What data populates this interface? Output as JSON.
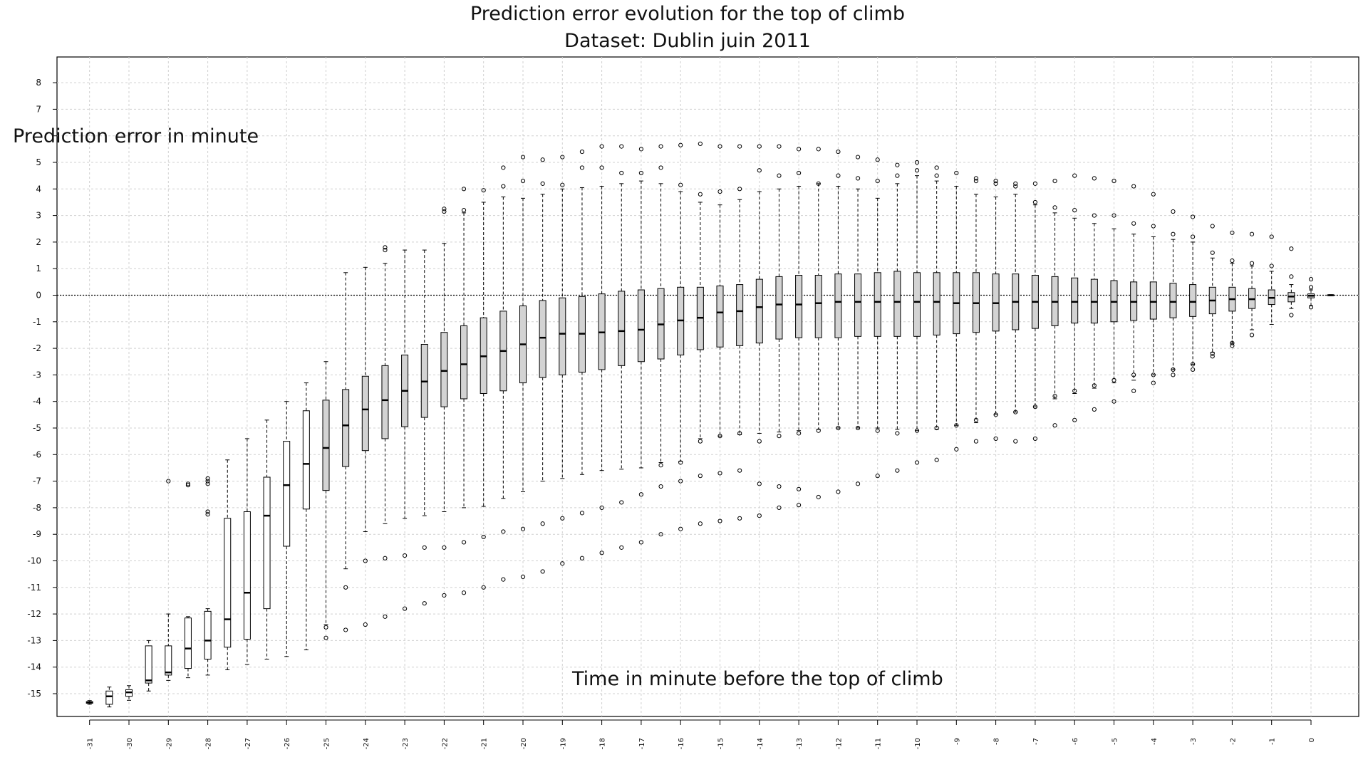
{
  "chart_data": {
    "type": "box",
    "title": "Prediction error evolution for the top of climb",
    "subtitle": "Dataset: Dublin juin 2011",
    "ylabel": "Prediction error in minute",
    "xlabel": "Time in minute before the top of climb",
    "ylim": [
      -15.9,
      8.9
    ],
    "yticks": [
      8,
      7,
      6,
      5,
      4,
      3,
      2,
      1,
      0,
      -1,
      -2,
      -3,
      -4,
      -5,
      -6,
      -7,
      -8,
      -9,
      -10,
      -11,
      -12,
      -13,
      -14,
      -15
    ],
    "yticks_labeled": [
      8,
      7,
      5,
      4,
      3,
      2,
      1,
      0,
      -1,
      -2,
      -3,
      -4,
      -5,
      -6,
      -7,
      -8,
      -9,
      -10,
      -11,
      -12,
      -13,
      -14,
      -15
    ],
    "xticks": [
      -31,
      -30,
      -29,
      -28,
      -27,
      -26,
      -25,
      -24,
      -23,
      -22,
      -21,
      -20,
      -19,
      -18,
      -17,
      -16,
      -15,
      -14,
      -13,
      -12,
      -11,
      -10,
      -9,
      -8,
      -7,
      -6,
      -5,
      -4,
      -3,
      -2,
      -1,
      0
    ],
    "grid": true,
    "reference_line_y": 0,
    "boxes": [
      {
        "x": -31,
        "min": -15.4,
        "q1": -15.36,
        "median": -15.33,
        "q3": -15.3,
        "max": -15.26,
        "fill": "white",
        "upper_outliers": [],
        "lower_outliers": []
      },
      {
        "x": -30.5,
        "min": -15.5,
        "q1": -15.4,
        "median": -15.1,
        "q3": -14.9,
        "max": -14.75,
        "fill": "white",
        "upper_outliers": [],
        "lower_outliers": []
      },
      {
        "x": -30,
        "min": -15.25,
        "q1": -15.1,
        "median": -14.95,
        "q3": -14.85,
        "max": -14.7,
        "fill": "white",
        "upper_outliers": [],
        "lower_outliers": []
      },
      {
        "x": -29.5,
        "min": -14.9,
        "q1": -14.6,
        "median": -14.5,
        "q3": -13.2,
        "max": -13.0,
        "fill": "white",
        "upper_outliers": [],
        "lower_outliers": []
      },
      {
        "x": -29,
        "min": -14.5,
        "q1": -14.3,
        "median": -14.2,
        "q3": -13.2,
        "max": -12.0,
        "fill": "white",
        "upper_outliers": [
          -7.0
        ],
        "lower_outliers": []
      },
      {
        "x": -28.5,
        "min": -14.4,
        "q1": -14.05,
        "median": -13.3,
        "q3": -12.15,
        "max": -12.1,
        "fill": "white",
        "upper_outliers": [
          -7.1,
          -7.15
        ],
        "lower_outliers": []
      },
      {
        "x": -28,
        "min": -14.3,
        "q1": -13.7,
        "median": -13.0,
        "q3": -11.9,
        "max": -11.8,
        "fill": "white",
        "upper_outliers": [
          -6.9,
          -7.0,
          -7.1,
          -8.15,
          -8.25
        ],
        "lower_outliers": []
      },
      {
        "x": -27.5,
        "min": -14.1,
        "q1": -13.25,
        "median": -12.2,
        "q3": -8.4,
        "max": -6.2,
        "fill": "white",
        "upper_outliers": [],
        "lower_outliers": []
      },
      {
        "x": -27,
        "min": -13.9,
        "q1": -12.95,
        "median": -11.2,
        "q3": -8.15,
        "max": -5.4,
        "fill": "white",
        "upper_outliers": [],
        "lower_outliers": []
      },
      {
        "x": -26.5,
        "min": -13.7,
        "q1": -11.8,
        "median": -8.3,
        "q3": -6.85,
        "max": -4.7,
        "fill": "white",
        "upper_outliers": [],
        "lower_outliers": []
      },
      {
        "x": -26,
        "min": -13.6,
        "q1": -9.45,
        "median": -7.15,
        "q3": -5.5,
        "max": -4.0,
        "fill": "white",
        "upper_outliers": [],
        "lower_outliers": []
      },
      {
        "x": -25.5,
        "min": -13.35,
        "q1": -8.05,
        "median": -6.35,
        "q3": -4.35,
        "max": -3.3,
        "fill": "white",
        "upper_outliers": [],
        "lower_outliers": []
      },
      {
        "x": -25,
        "min": -12.4,
        "q1": -7.35,
        "median": -5.75,
        "q3": -3.95,
        "max": -2.5,
        "fill": "#d3d3d3",
        "upper_outliers": [],
        "lower_outliers": [
          -12.5,
          -12.9
        ]
      },
      {
        "x": -24.5,
        "min": -10.3,
        "q1": -6.45,
        "median": -4.9,
        "q3": -3.55,
        "max": 0.85,
        "fill": "#d3d3d3",
        "upper_outliers": [],
        "lower_outliers": [
          -11.0,
          -12.6
        ]
      },
      {
        "x": -24,
        "min": -8.9,
        "q1": -5.85,
        "median": -4.3,
        "q3": -3.05,
        "max": 1.05,
        "fill": "#d3d3d3",
        "upper_outliers": [],
        "lower_outliers": [
          -10.0,
          -12.4
        ]
      },
      {
        "x": -23.5,
        "min": -8.6,
        "q1": -5.4,
        "median": -3.95,
        "q3": -2.65,
        "max": 1.2,
        "fill": "#d3d3d3",
        "upper_outliers": [
          1.7,
          1.8
        ],
        "lower_outliers": [
          -9.9,
          -12.1
        ]
      },
      {
        "x": -23,
        "min": -8.4,
        "q1": -4.95,
        "median": -3.6,
        "q3": -2.25,
        "max": 1.7,
        "fill": "#d3d3d3",
        "upper_outliers": [],
        "lower_outliers": [
          -9.8,
          -11.8
        ]
      },
      {
        "x": -22.5,
        "min": -8.3,
        "q1": -4.6,
        "median": -3.25,
        "q3": -1.85,
        "max": 1.7,
        "fill": "#d3d3d3",
        "upper_outliers": [],
        "lower_outliers": [
          -9.5,
          -11.6
        ]
      },
      {
        "x": -22,
        "min": -8.15,
        "q1": -4.2,
        "median": -2.85,
        "q3": -1.4,
        "max": 1.95,
        "fill": "#d3d3d3",
        "upper_outliers": [
          3.15,
          3.25
        ],
        "lower_outliers": [
          -9.5,
          -11.3
        ]
      },
      {
        "x": -21.5,
        "min": -8.0,
        "q1": -3.9,
        "median": -2.6,
        "q3": -1.15,
        "max": 3.1,
        "fill": "#d3d3d3",
        "upper_outliers": [
          3.2,
          4.0
        ],
        "lower_outliers": [
          -9.3,
          -11.2
        ]
      },
      {
        "x": -21,
        "min": -7.95,
        "q1": -3.7,
        "median": -2.3,
        "q3": -0.85,
        "max": 3.5,
        "fill": "#d3d3d3",
        "upper_outliers": [
          3.95
        ],
        "lower_outliers": [
          -9.1,
          -11.0
        ]
      },
      {
        "x": -20.5,
        "min": -7.65,
        "q1": -3.6,
        "median": -2.1,
        "q3": -0.6,
        "max": 3.7,
        "fill": "#d3d3d3",
        "upper_outliers": [
          4.1,
          4.8
        ],
        "lower_outliers": [
          -8.9,
          -10.7
        ]
      },
      {
        "x": -20,
        "min": -7.4,
        "q1": -3.3,
        "median": -1.85,
        "q3": -0.4,
        "max": 3.65,
        "fill": "#d3d3d3",
        "upper_outliers": [
          4.3,
          5.2
        ],
        "lower_outliers": [
          -8.8,
          -10.6
        ]
      },
      {
        "x": -19.5,
        "min": -7.0,
        "q1": -3.1,
        "median": -1.6,
        "q3": -0.2,
        "max": 3.8,
        "fill": "#d3d3d3",
        "upper_outliers": [
          4.2,
          5.1
        ],
        "lower_outliers": [
          -8.6,
          -10.4
        ]
      },
      {
        "x": -19,
        "min": -6.9,
        "q1": -3.0,
        "median": -1.45,
        "q3": -0.1,
        "max": 4.0,
        "fill": "#d3d3d3",
        "upper_outliers": [
          4.15,
          5.2
        ],
        "lower_outliers": [
          -8.4,
          -10.1
        ]
      },
      {
        "x": -18.5,
        "min": -6.75,
        "q1": -2.9,
        "median": -1.45,
        "q3": -0.05,
        "max": 4.05,
        "fill": "#d3d3d3",
        "upper_outliers": [
          4.8,
          5.4
        ],
        "lower_outliers": [
          -8.2,
          -9.9
        ]
      },
      {
        "x": -18,
        "min": -6.6,
        "q1": -2.8,
        "median": -1.4,
        "q3": 0.05,
        "max": 4.1,
        "fill": "#d3d3d3",
        "upper_outliers": [
          4.8,
          5.6
        ],
        "lower_outliers": [
          -8.0,
          -9.7
        ]
      },
      {
        "x": -17.5,
        "min": -6.55,
        "q1": -2.65,
        "median": -1.35,
        "q3": 0.15,
        "max": 4.2,
        "fill": "#d3d3d3",
        "upper_outliers": [
          4.6,
          5.6
        ],
        "lower_outliers": [
          -7.8,
          -9.5
        ]
      },
      {
        "x": -17,
        "min": -6.5,
        "q1": -2.5,
        "median": -1.3,
        "q3": 0.2,
        "max": 4.3,
        "fill": "#d3d3d3",
        "upper_outliers": [
          4.6,
          5.5
        ],
        "lower_outliers": [
          -7.5,
          -9.3
        ]
      },
      {
        "x": -16.5,
        "min": -6.3,
        "q1": -2.4,
        "median": -1.1,
        "q3": 0.25,
        "max": 4.2,
        "fill": "#d3d3d3",
        "upper_outliers": [
          4.8,
          5.6
        ],
        "lower_outliers": [
          -6.4,
          -7.2,
          -9.0
        ]
      },
      {
        "x": -16,
        "min": -6.25,
        "q1": -2.25,
        "median": -0.95,
        "q3": 0.3,
        "max": 3.9,
        "fill": "#d3d3d3",
        "upper_outliers": [
          4.15,
          5.65
        ],
        "lower_outliers": [
          -6.3,
          -7.0,
          -8.8
        ]
      },
      {
        "x": -15.5,
        "min": -5.4,
        "q1": -2.05,
        "median": -0.85,
        "q3": 0.3,
        "max": 3.5,
        "fill": "#d3d3d3",
        "upper_outliers": [
          3.8,
          5.7
        ],
        "lower_outliers": [
          -5.5,
          -6.8,
          -8.6
        ]
      },
      {
        "x": -15,
        "min": -5.3,
        "q1": -1.95,
        "median": -0.65,
        "q3": 0.35,
        "max": 3.4,
        "fill": "#d3d3d3",
        "upper_outliers": [
          3.9,
          5.6
        ],
        "lower_outliers": [
          -5.3,
          -6.7,
          -8.5
        ]
      },
      {
        "x": -14.5,
        "min": -5.25,
        "q1": -1.9,
        "median": -0.6,
        "q3": 0.4,
        "max": 3.6,
        "fill": "#d3d3d3",
        "upper_outliers": [
          4.0,
          5.6
        ],
        "lower_outliers": [
          -5.2,
          -6.6,
          -8.4
        ]
      },
      {
        "x": -14,
        "min": -5.2,
        "q1": -1.8,
        "median": -0.45,
        "q3": 0.6,
        "max": 3.9,
        "fill": "#d3d3d3",
        "upper_outliers": [
          4.7,
          5.6
        ],
        "lower_outliers": [
          -5.5,
          -7.1,
          -8.3
        ]
      },
      {
        "x": -13.5,
        "min": -5.15,
        "q1": -1.65,
        "median": -0.35,
        "q3": 0.7,
        "max": 4.0,
        "fill": "#d3d3d3",
        "upper_outliers": [
          4.5,
          5.6
        ],
        "lower_outliers": [
          -5.3,
          -7.2,
          -8.0
        ]
      },
      {
        "x": -13,
        "min": -5.1,
        "q1": -1.6,
        "median": -0.35,
        "q3": 0.75,
        "max": 4.1,
        "fill": "#d3d3d3",
        "upper_outliers": [
          4.6,
          5.5
        ],
        "lower_outliers": [
          -5.2,
          -7.3,
          -7.9
        ]
      },
      {
        "x": -12.5,
        "min": -5.05,
        "q1": -1.6,
        "median": -0.3,
        "q3": 0.75,
        "max": 4.2,
        "fill": "#d3d3d3",
        "upper_outliers": [
          4.2,
          5.5
        ],
        "lower_outliers": [
          -5.1,
          -7.6
        ]
      },
      {
        "x": -12,
        "min": -5.0,
        "q1": -1.6,
        "median": -0.25,
        "q3": 0.8,
        "max": 4.1,
        "fill": "#d3d3d3",
        "upper_outliers": [
          4.5,
          5.4
        ],
        "lower_outliers": [
          -5.0,
          -7.4
        ]
      },
      {
        "x": -11.5,
        "min": -5.0,
        "q1": -1.55,
        "median": -0.25,
        "q3": 0.8,
        "max": 4.0,
        "fill": "#d3d3d3",
        "upper_outliers": [
          4.4,
          5.2
        ],
        "lower_outliers": [
          -5.0,
          -7.1
        ]
      },
      {
        "x": -11,
        "min": -5.0,
        "q1": -1.55,
        "median": -0.25,
        "q3": 0.85,
        "max": 3.65,
        "fill": "#d3d3d3",
        "upper_outliers": [
          4.3,
          5.1
        ],
        "lower_outliers": [
          -5.1,
          -6.8
        ]
      },
      {
        "x": -10.5,
        "min": -5.05,
        "q1": -1.55,
        "median": -0.25,
        "q3": 0.9,
        "max": 4.2,
        "fill": "#d3d3d3",
        "upper_outliers": [
          4.5,
          4.9
        ],
        "lower_outliers": [
          -5.2,
          -6.6
        ]
      },
      {
        "x": -10,
        "min": -5.1,
        "q1": -1.55,
        "median": -0.25,
        "q3": 0.85,
        "max": 4.5,
        "fill": "#d3d3d3",
        "upper_outliers": [
          4.7,
          5.0
        ],
        "lower_outliers": [
          -5.1,
          -6.3
        ]
      },
      {
        "x": -9.5,
        "min": -5.05,
        "q1": -1.5,
        "median": -0.25,
        "q3": 0.85,
        "max": 4.3,
        "fill": "#d3d3d3",
        "upper_outliers": [
          4.5,
          4.8
        ],
        "lower_outliers": [
          -5.0,
          -6.2
        ]
      },
      {
        "x": -9,
        "min": -4.9,
        "q1": -1.45,
        "median": -0.3,
        "q3": 0.85,
        "max": 4.1,
        "fill": "#d3d3d3",
        "upper_outliers": [
          4.6
        ],
        "lower_outliers": [
          -4.9,
          -5.8
        ]
      },
      {
        "x": -8.5,
        "min": -4.8,
        "q1": -1.4,
        "median": -0.3,
        "q3": 0.85,
        "max": 3.8,
        "fill": "#d3d3d3",
        "upper_outliers": [
          4.3,
          4.4
        ],
        "lower_outliers": [
          -4.7,
          -5.5
        ]
      },
      {
        "x": -8,
        "min": -4.5,
        "q1": -1.35,
        "median": -0.3,
        "q3": 0.8,
        "max": 3.7,
        "fill": "#d3d3d3",
        "upper_outliers": [
          4.2,
          4.3
        ],
        "lower_outliers": [
          -4.5,
          -5.4
        ]
      },
      {
        "x": -7.5,
        "min": -4.4,
        "q1": -1.3,
        "median": -0.25,
        "q3": 0.8,
        "max": 3.8,
        "fill": "#d3d3d3",
        "upper_outliers": [
          4.1,
          4.2
        ],
        "lower_outliers": [
          -4.4,
          -5.5
        ]
      },
      {
        "x": -7,
        "min": -4.2,
        "q1": -1.25,
        "median": -0.25,
        "q3": 0.75,
        "max": 3.4,
        "fill": "#d3d3d3",
        "upper_outliers": [
          3.5,
          4.2
        ],
        "lower_outliers": [
          -4.2,
          -5.4
        ]
      },
      {
        "x": -6.5,
        "min": -3.9,
        "q1": -1.15,
        "median": -0.25,
        "q3": 0.7,
        "max": 3.1,
        "fill": "#d3d3d3",
        "upper_outliers": [
          3.3,
          4.3
        ],
        "lower_outliers": [
          -3.8,
          -4.9
        ]
      },
      {
        "x": -6,
        "min": -3.7,
        "q1": -1.05,
        "median": -0.25,
        "q3": 0.65,
        "max": 2.9,
        "fill": "#d3d3d3",
        "upper_outliers": [
          3.2,
          4.5
        ],
        "lower_outliers": [
          -3.6,
          -4.7
        ]
      },
      {
        "x": -5.5,
        "min": -3.5,
        "q1": -1.05,
        "median": -0.25,
        "q3": 0.6,
        "max": 2.7,
        "fill": "#d3d3d3",
        "upper_outliers": [
          3.0,
          4.4
        ],
        "lower_outliers": [
          -3.4,
          -4.3
        ]
      },
      {
        "x": -5,
        "min": -3.3,
        "q1": -1.0,
        "median": -0.25,
        "q3": 0.55,
        "max": 2.5,
        "fill": "#d3d3d3",
        "upper_outliers": [
          3.0,
          4.3
        ],
        "lower_outliers": [
          -3.2,
          -4.0
        ]
      },
      {
        "x": -4.5,
        "min": -3.2,
        "q1": -0.95,
        "median": -0.25,
        "q3": 0.5,
        "max": 2.3,
        "fill": "#d3d3d3",
        "upper_outliers": [
          2.7,
          4.1
        ],
        "lower_outliers": [
          -3.0,
          -3.6
        ]
      },
      {
        "x": -4,
        "min": -3.0,
        "q1": -0.9,
        "median": -0.25,
        "q3": 0.5,
        "max": 2.2,
        "fill": "#d3d3d3",
        "upper_outliers": [
          2.6,
          3.8
        ],
        "lower_outliers": [
          -3.0,
          -3.3
        ]
      },
      {
        "x": -3.5,
        "min": -2.8,
        "q1": -0.85,
        "median": -0.25,
        "q3": 0.45,
        "max": 2.1,
        "fill": "#d3d3d3",
        "upper_outliers": [
          2.3,
          3.15
        ],
        "lower_outliers": [
          -2.8,
          -3.0
        ]
      },
      {
        "x": -3,
        "min": -2.6,
        "q1": -0.8,
        "median": -0.25,
        "q3": 0.4,
        "max": 2.0,
        "fill": "#d3d3d3",
        "upper_outliers": [
          2.2,
          2.95
        ],
        "lower_outliers": [
          -2.6,
          -2.8
        ]
      },
      {
        "x": -2.5,
        "min": -2.15,
        "q1": -0.7,
        "median": -0.2,
        "q3": 0.3,
        "max": 1.4,
        "fill": "#d3d3d3",
        "upper_outliers": [
          1.6,
          2.6
        ],
        "lower_outliers": [
          -2.2,
          -2.3
        ]
      },
      {
        "x": -2,
        "min": -1.8,
        "q1": -0.6,
        "median": -0.15,
        "q3": 0.3,
        "max": 1.2,
        "fill": "#d3d3d3",
        "upper_outliers": [
          1.3,
          2.35
        ],
        "lower_outliers": [
          -1.8,
          -1.9
        ]
      },
      {
        "x": -1.5,
        "min": -1.3,
        "q1": -0.5,
        "median": -0.15,
        "q3": 0.25,
        "max": 1.1,
        "fill": "#d3d3d3",
        "upper_outliers": [
          1.2,
          2.3
        ],
        "lower_outliers": [
          -1.5
        ]
      },
      {
        "x": -1,
        "min": -1.1,
        "q1": -0.35,
        "median": -0.1,
        "q3": 0.2,
        "max": 0.9,
        "fill": "#d3d3d3",
        "upper_outliers": [
          1.1,
          2.2
        ],
        "lower_outliers": []
      },
      {
        "x": -0.5,
        "min": -0.5,
        "q1": -0.25,
        "median": -0.05,
        "q3": 0.1,
        "max": 0.4,
        "fill": "#d3d3d3",
        "upper_outliers": [
          0.7,
          1.75
        ],
        "lower_outliers": [
          -0.75
        ]
      },
      {
        "x": 0,
        "min": -0.4,
        "q1": -0.1,
        "median": -0.02,
        "q3": 0.05,
        "max": 0.2,
        "fill": "#d3d3d3",
        "upper_outliers": [
          0.3,
          0.6
        ],
        "lower_outliers": [
          -0.45
        ]
      },
      {
        "x": 0.5,
        "min": -0.02,
        "q1": -0.01,
        "median": 0.0,
        "q3": 0.01,
        "max": 0.02,
        "fill": "#d3d3d3",
        "upper_outliers": [],
        "lower_outliers": []
      }
    ]
  }
}
